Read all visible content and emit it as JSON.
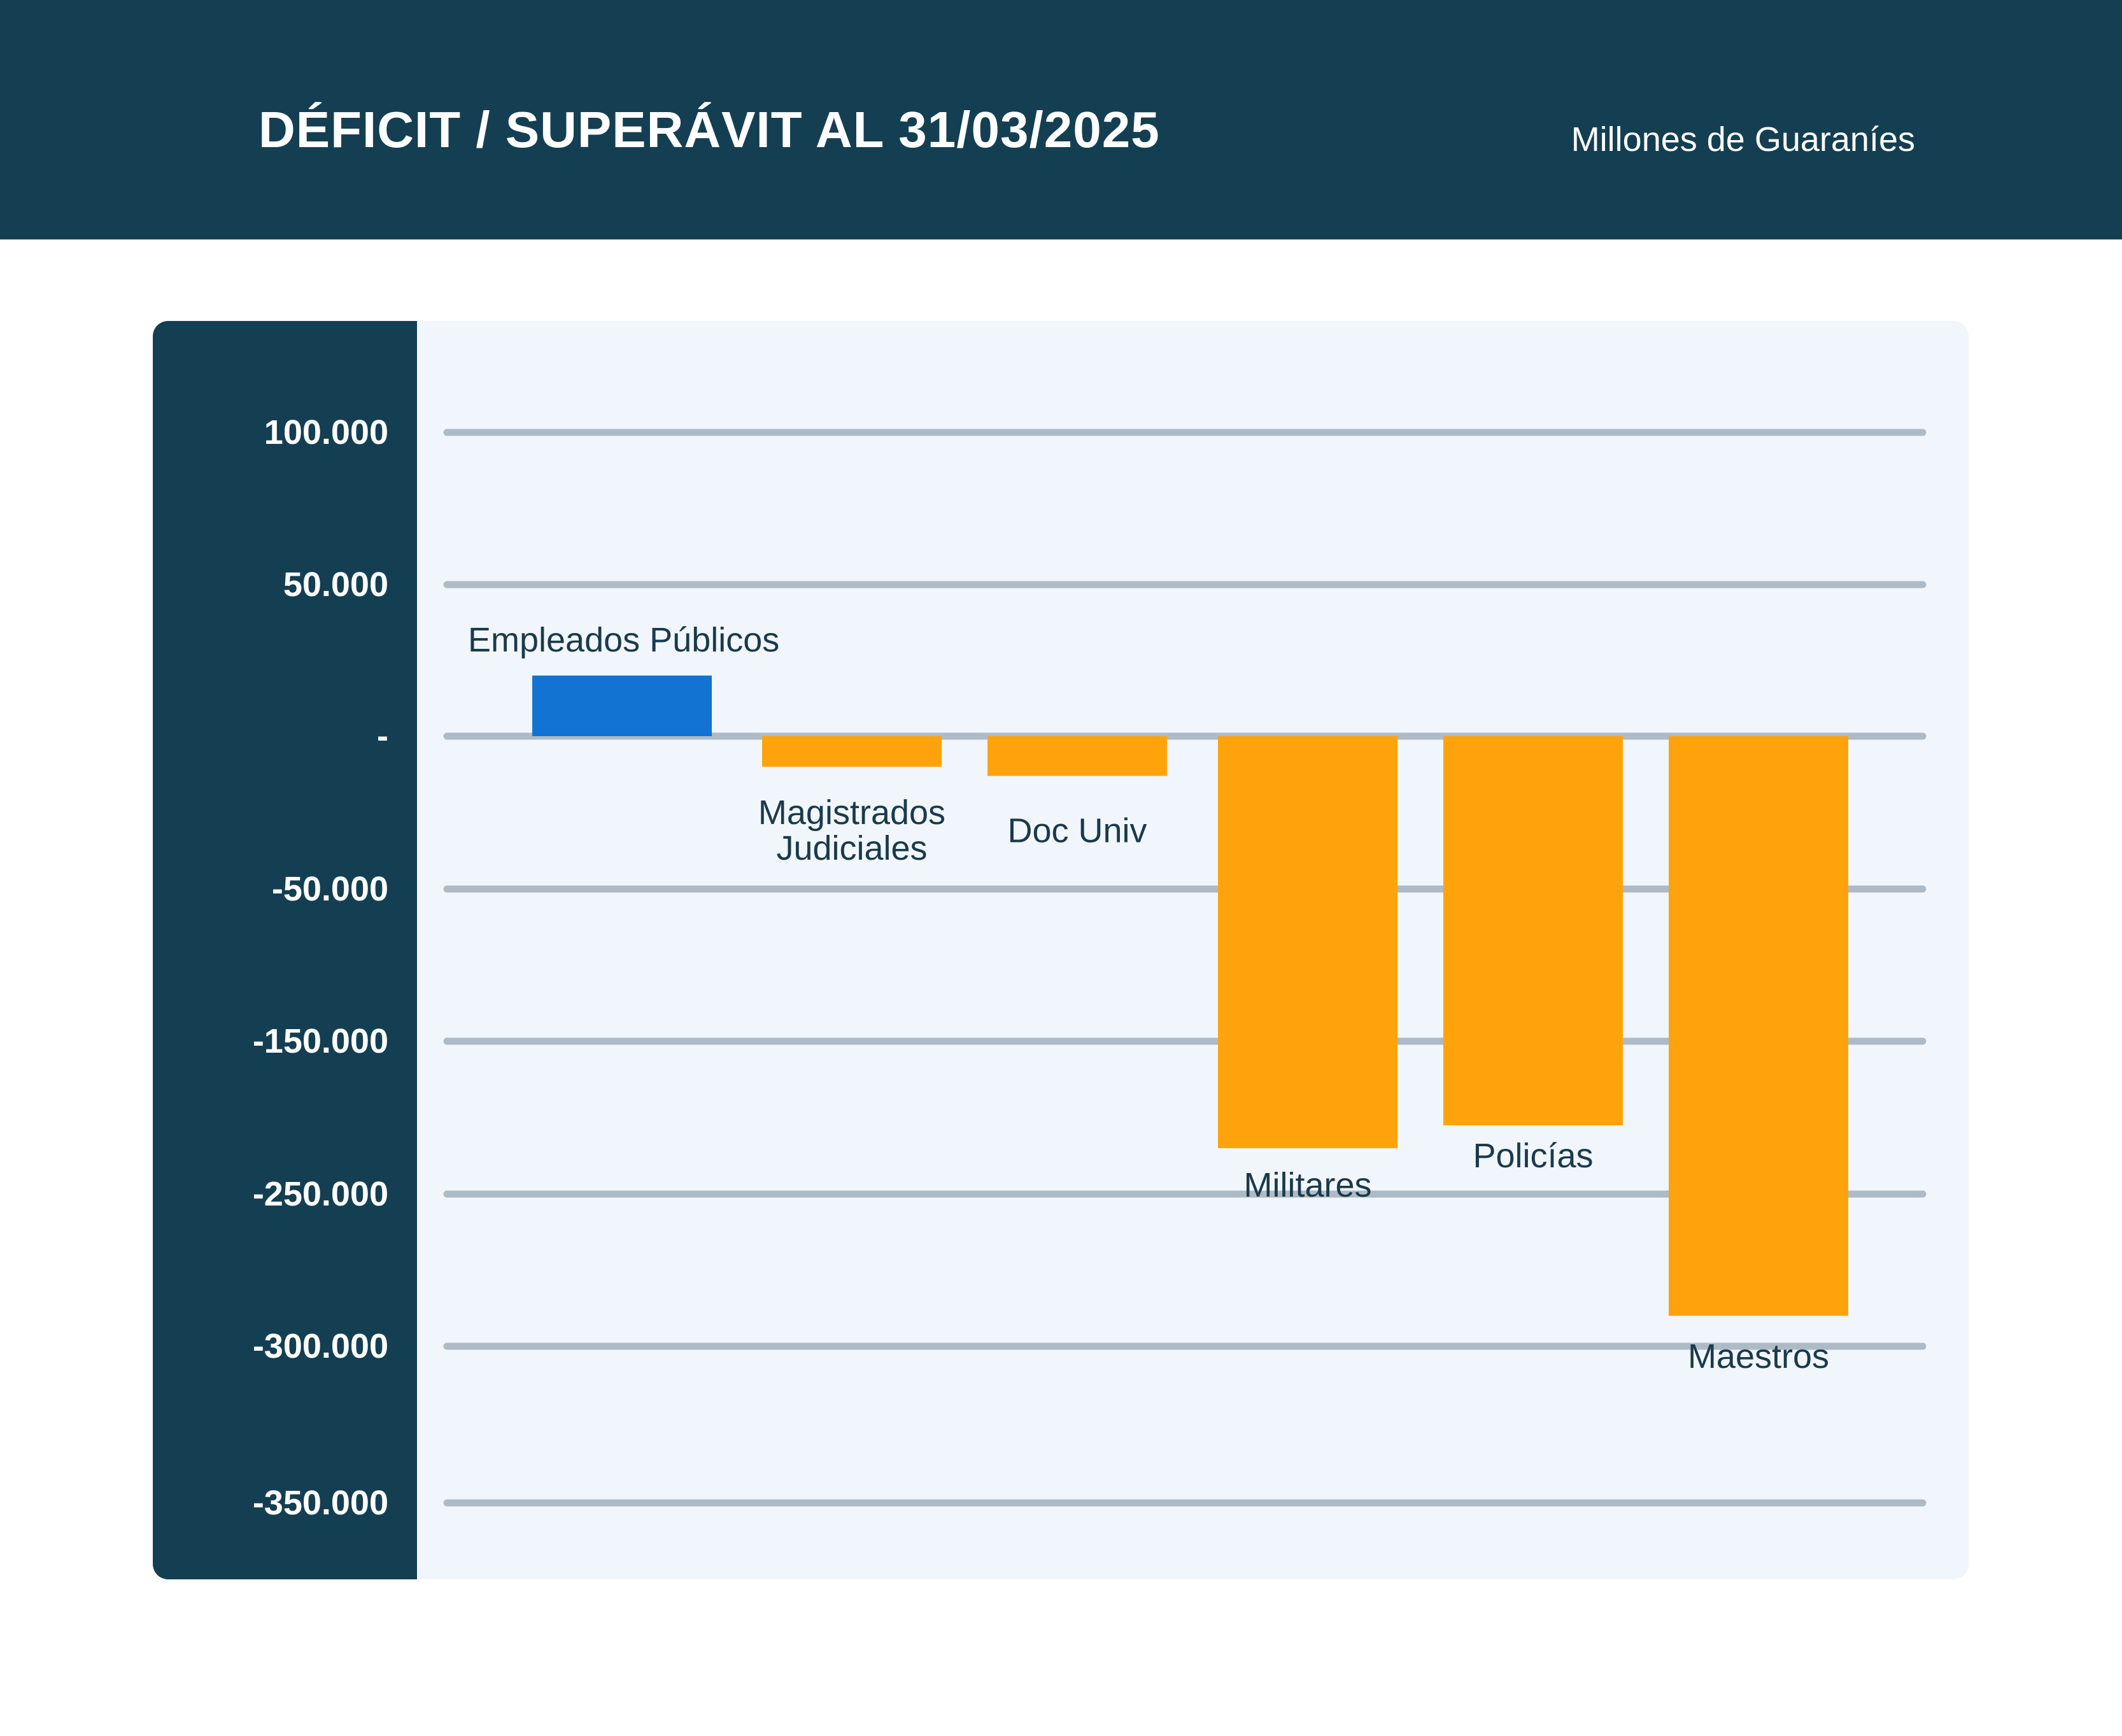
{
  "header": {
    "title": "DÉFICIT / SUPERÁVIT AL 31/03/2025",
    "unit": "Millones de Guaraníes"
  },
  "colors": {
    "header_bg": "#143f52",
    "panel_bg": "#f1f6fc",
    "gridline": "#aebbc6",
    "positive_bar": "#1273d3",
    "negative_bar": "#ffa30d",
    "label_text": "#1b3a4b"
  },
  "chart_data": {
    "type": "bar",
    "title": "DÉFICIT / SUPERÁVIT AL 31/03/2025",
    "ylabel": "Millones de Guaraníes",
    "y_ticks": [
      "100.000",
      "50.000",
      "-",
      "-50.000",
      "-150.000",
      "-250.000",
      "-300.000",
      "-350.000"
    ],
    "categories": [
      {
        "lines": [
          "Empleados  Públicos"
        ]
      },
      {
        "lines": [
          "Magistrados",
          "Judiciales"
        ]
      },
      {
        "lines": [
          "Doc Univ"
        ]
      },
      {
        "lines": [
          "Militares"
        ]
      },
      {
        "lines": [
          "Policías"
        ]
      },
      {
        "lines": [
          "Maestros"
        ]
      }
    ],
    "values": [
      20000,
      -10000,
      -13000,
      -220000,
      -205000,
      -290000
    ],
    "grid": true,
    "legend": "none"
  }
}
